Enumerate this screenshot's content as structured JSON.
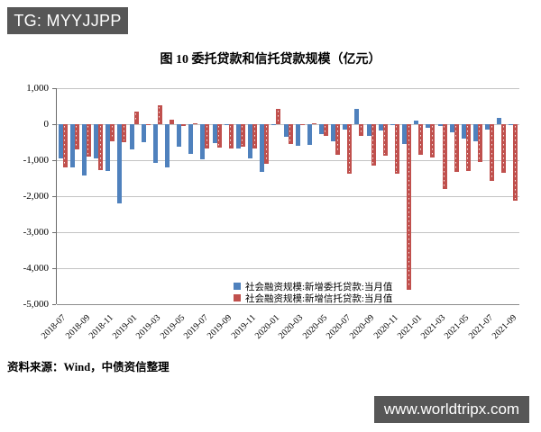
{
  "header_badge": {
    "label": "TG: MYYJJPP",
    "bg": "#575757",
    "text_color": "#ffffff"
  },
  "footer_badge": {
    "label": "www.worldtripx.com",
    "bg": "#575757",
    "text_color": "#ffffff"
  },
  "figure": {
    "source_note": "资料来源：Wind，中债资信整理"
  },
  "chart_data": {
    "type": "bar",
    "title": "图 10 委托贷款和信托贷款规模（亿元）",
    "xlabel": "",
    "ylabel": "",
    "ylim": [
      -5000,
      1000
    ],
    "grid": true,
    "legend_position": "bottom-center",
    "y_ticks": [
      1000,
      0,
      -1000,
      -2000,
      -3000,
      -4000,
      -5000
    ],
    "y_tick_labels": [
      "1,000",
      "0",
      "-1,000",
      "-2,000",
      "-3,000",
      "-4,000",
      "-5,000"
    ],
    "x_tick_label_step": 2,
    "gridline_color": "#c3c3c3",
    "categories": [
      "2018-07",
      "2018-08",
      "2018-09",
      "2018-10",
      "2018-11",
      "2018-12",
      "2019-01",
      "2019-02",
      "2019-03",
      "2019-04",
      "2019-05",
      "2019-06",
      "2019-07",
      "2019-08",
      "2019-09",
      "2019-10",
      "2019-11",
      "2019-12",
      "2020-01",
      "2020-02",
      "2020-03",
      "2020-04",
      "2020-05",
      "2020-06",
      "2020-07",
      "2020-08",
      "2020-09",
      "2020-10",
      "2020-11",
      "2020-12",
      "2021-01",
      "2021-02",
      "2021-03",
      "2021-04",
      "2021-05",
      "2021-06",
      "2021-07",
      "2021-08",
      "2021-09"
    ],
    "series": [
      {
        "name": "社会融资规模:新增委托贷款:当月值",
        "color": "#4F81BD",
        "values": [
          -950,
          -1207,
          -1435,
          -949,
          -1310,
          -2210,
          -699,
          -508,
          -1070,
          -1197,
          -631,
          -827,
          -987,
          -513,
          -21,
          -667,
          -959,
          -1316,
          -26,
          -356,
          -588,
          -579,
          -273,
          -484,
          -152,
          415,
          -317,
          -174,
          -31,
          -559,
          91,
          -100,
          -41,
          -213,
          -408,
          -473,
          -151,
          177,
          -22
        ]
      },
      {
        "name": "社会融资规模:新增信托贷款:当月值",
        "color": "#C0504D",
        "values": [
          -1192,
          -688,
          -909,
          -1273,
          -467,
          -509,
          345,
          -37,
          528,
          129,
          -52,
          15,
          -676,
          -658,
          -672,
          -624,
          -673,
          -1092,
          432,
          -540,
          -9,
          23,
          -337,
          -852,
          -1367,
          -316,
          -1159,
          -875,
          -1387,
          -4601,
          -842,
          -936,
          -1791,
          -1328,
          -1295,
          -1047,
          -1571,
          -1362,
          -2129
        ]
      }
    ]
  }
}
